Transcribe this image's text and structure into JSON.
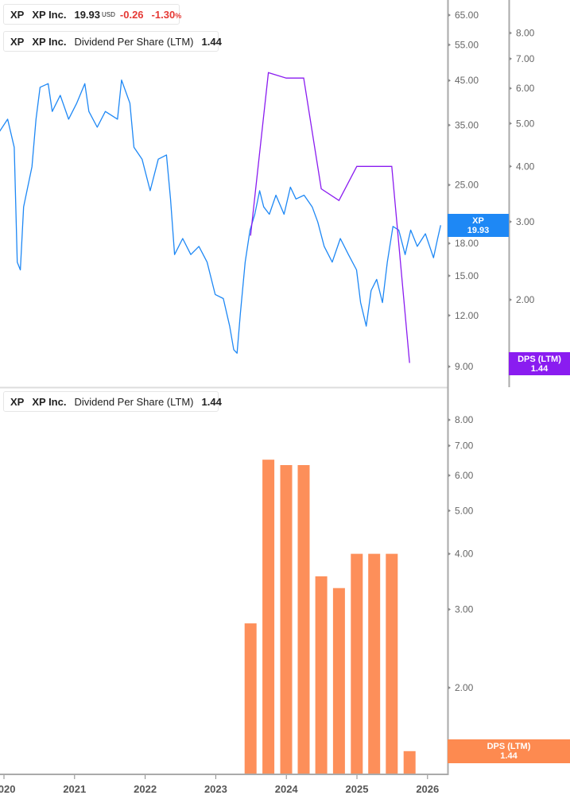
{
  "colors": {
    "price": "#1e88f5",
    "dps_line": "#8a1cf0",
    "dps_bar": "#fd8f5a",
    "negative": "#e53935"
  },
  "legend_price": {
    "ticker": "XP",
    "name": "XP Inc.",
    "price": "19.93",
    "currency": "USD",
    "change": "-0.26",
    "change_pct": "-1.30",
    "pct_sign": "%"
  },
  "legend_dps_top": {
    "ticker": "XP",
    "name": "XP Inc.",
    "metric": "Dividend Per Share (LTM)",
    "value": "1.44"
  },
  "legend_dps_bottom": {
    "ticker": "XP",
    "name": "XP Inc.",
    "metric": "Dividend Per Share (LTM)",
    "value": "1.44"
  },
  "tags": {
    "price": {
      "label": "XP",
      "value": "19.93"
    },
    "dps_top": {
      "label": "DPS (LTM)",
      "value": "1.44"
    },
    "dps_bottom": {
      "label": "DPS (LTM)",
      "value": "1.44"
    }
  },
  "chart_data": [
    {
      "type": "line",
      "scale": "log",
      "price_axis_ticks": [
        "65.00",
        "55.00",
        "45.00",
        "35.00",
        "25.00",
        "18.00",
        "15.00",
        "12.00",
        "9.00"
      ],
      "dps_axis_ticks": [
        "8.00",
        "7.00",
        "6.00",
        "5.00",
        "4.00",
        "3.00",
        "2.00"
      ],
      "series": [
        {
          "name": "XP",
          "axis": "price",
          "points": [
            [
              "2019-12-10",
              33.8
            ],
            [
              "2020-01-20",
              36.2
            ],
            [
              "2020-02-23",
              30.9
            ],
            [
              "2020-03-10",
              16.2
            ],
            [
              "2020-03-26",
              15.5
            ],
            [
              "2020-04-12",
              22.1
            ],
            [
              "2020-05-25",
              27.7
            ],
            [
              "2020-06-15",
              36.2
            ],
            [
              "2020-07-06",
              43.3
            ],
            [
              "2020-08-17",
              44.2
            ],
            [
              "2020-09-07",
              37.8
            ],
            [
              "2020-10-19",
              41.4
            ],
            [
              "2020-12-01",
              36.2
            ],
            [
              "2021-01-12",
              39.6
            ],
            [
              "2021-02-23",
              44.2
            ],
            [
              "2021-03-16",
              37.8
            ],
            [
              "2021-04-28",
              34.6
            ],
            [
              "2021-06-09",
              37.8
            ],
            [
              "2021-08-11",
              36.2
            ],
            [
              "2021-09-01",
              45.1
            ],
            [
              "2021-10-14",
              39.6
            ],
            [
              "2021-11-04",
              30.9
            ],
            [
              "2021-12-16",
              28.9
            ],
            [
              "2022-01-27",
              24.2
            ],
            [
              "2022-03-10",
              28.9
            ],
            [
              "2022-04-21",
              29.6
            ],
            [
              "2022-05-12",
              23.1
            ],
            [
              "2022-06-02",
              16.9
            ],
            [
              "2022-07-14",
              18.5
            ],
            [
              "2022-08-25",
              16.9
            ],
            [
              "2022-10-06",
              17.7
            ],
            [
              "2022-11-17",
              16.2
            ],
            [
              "2022-12-29",
              13.5
            ],
            [
              "2023-02-09",
              13.2
            ],
            [
              "2023-03-14",
              11.3
            ],
            [
              "2023-04-04",
              9.9
            ],
            [
              "2023-04-21",
              9.7
            ],
            [
              "2023-05-08",
              12.1
            ],
            [
              "2023-06-02",
              16.2
            ],
            [
              "2023-06-27",
              19.4
            ],
            [
              "2023-07-22",
              21.2
            ],
            [
              "2023-08-16",
              24.2
            ],
            [
              "2023-09-06",
              22.1
            ],
            [
              "2023-10-05",
              21.2
            ],
            [
              "2023-11-08",
              23.6
            ],
            [
              "2023-12-20",
              21.2
            ],
            [
              "2024-01-22",
              24.7
            ],
            [
              "2024-02-20",
              23.1
            ],
            [
              "2024-04-02",
              23.6
            ],
            [
              "2024-05-14",
              22.1
            ],
            [
              "2024-06-12",
              20.3
            ],
            [
              "2024-07-15",
              17.7
            ],
            [
              "2024-08-26",
              16.2
            ],
            [
              "2024-10-07",
              18.5
            ],
            [
              "2024-11-18",
              16.9
            ],
            [
              "2024-12-30",
              15.5
            ],
            [
              "2025-01-20",
              12.9
            ],
            [
              "2025-02-18",
              11.3
            ],
            [
              "2025-03-15",
              13.8
            ],
            [
              "2025-04-13",
              14.7
            ],
            [
              "2025-05-13",
              12.9
            ],
            [
              "2025-06-07",
              16.2
            ],
            [
              "2025-07-06",
              19.8
            ],
            [
              "2025-08-05",
              19.4
            ],
            [
              "2025-09-07",
              16.9
            ],
            [
              "2025-10-06",
              19.4
            ],
            [
              "2025-11-09",
              17.7
            ],
            [
              "2025-12-21",
              19.0
            ],
            [
              "2026-02-01",
              16.6
            ],
            [
              "2026-02-22",
              18.5
            ],
            [
              "2026-03-10",
              19.93
            ]
          ]
        },
        {
          "name": "Dividend Per Share (LTM)",
          "axis": "dps",
          "points": [
            [
              "2023-06-30",
              2.79
            ],
            [
              "2023-09-30",
              6.51
            ],
            [
              "2023-12-31",
              6.33
            ],
            [
              "2024-03-31",
              6.33
            ],
            [
              "2024-06-30",
              3.56
            ],
            [
              "2024-09-30",
              3.35
            ],
            [
              "2024-12-31",
              4.0
            ],
            [
              "2025-03-31",
              4.0
            ],
            [
              "2025-06-30",
              4.0
            ],
            [
              "2025-09-30",
              1.44
            ]
          ]
        }
      ]
    },
    {
      "type": "bar",
      "scale": "log",
      "y_ticks": [
        "8.00",
        "7.00",
        "6.00",
        "5.00",
        "4.00",
        "3.00",
        "2.00"
      ],
      "x_ticks": [
        "2020",
        "2021",
        "2022",
        "2023",
        "2024",
        "2025",
        "2026"
      ],
      "categories": [
        "2023-06-30",
        "2023-09-30",
        "2023-12-31",
        "2024-03-31",
        "2024-06-30",
        "2024-09-30",
        "2024-12-31",
        "2025-03-31",
        "2025-06-30",
        "2025-09-30"
      ],
      "values": [
        2.79,
        6.51,
        6.33,
        6.33,
        3.56,
        3.35,
        4.0,
        4.0,
        4.0,
        1.44
      ]
    }
  ]
}
